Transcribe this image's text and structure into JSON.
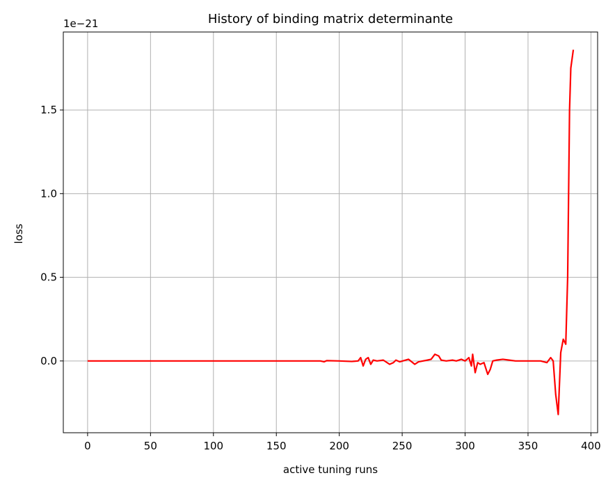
{
  "chart_data": {
    "type": "line",
    "title": "History of binding matrix determinante",
    "xlabel": "active tuning runs",
    "ylabel": "loss",
    "y_offset_label": "1e−21",
    "x": [
      0,
      50,
      100,
      150,
      185,
      188,
      190,
      200,
      210,
      215,
      217,
      219,
      221,
      223,
      225,
      227,
      230,
      235,
      240,
      243,
      245,
      248,
      255,
      260,
      263,
      270,
      273,
      276,
      279,
      281,
      285,
      290,
      293,
      297,
      300,
      303,
      305,
      306,
      308,
      310,
      312,
      315,
      318,
      320,
      322,
      325,
      330,
      335,
      340,
      350,
      360,
      365,
      368,
      370,
      372,
      374,
      376,
      378,
      380,
      381.5,
      383,
      384,
      386
    ],
    "series": [
      {
        "name": "loss",
        "color": "#ff0000",
        "values": [
          0,
          0,
          0,
          0,
          0,
          -0.005,
          0.002,
          0,
          -0.003,
          0,
          0.02,
          -0.03,
          0.01,
          0.02,
          -0.02,
          0.005,
          0,
          0.005,
          -0.02,
          -0.01,
          0.005,
          -0.005,
          0.01,
          -0.02,
          -0.005,
          0.005,
          0.01,
          0.04,
          0.03,
          0.005,
          0,
          0.005,
          0,
          0.01,
          0,
          0.02,
          -0.03,
          0.04,
          -0.07,
          -0.01,
          -0.02,
          -0.01,
          -0.08,
          -0.05,
          0,
          0.005,
          0.01,
          0.005,
          0,
          0,
          0,
          -0.01,
          0.02,
          0,
          -0.2,
          -0.32,
          0.05,
          0.13,
          0.1,
          0.5,
          1.5,
          1.75,
          1.86
        ]
      }
    ],
    "xlim": [
      -19.3,
      405.3
    ],
    "xticks": [
      0,
      50,
      100,
      150,
      200,
      250,
      300,
      350,
      400
    ],
    "ylim": [
      -0.429,
      1.966
    ],
    "yticks": [
      {
        "value": 0,
        "label": "0.0"
      },
      0.5,
      {
        "value": 1,
        "label": "1.0"
      },
      1.5
    ],
    "grid": true
  }
}
